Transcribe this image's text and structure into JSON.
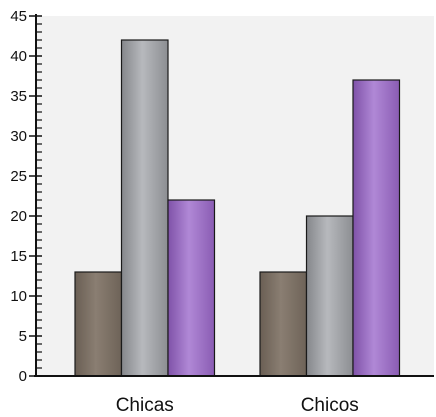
{
  "chart_data": {
    "type": "bar",
    "title": "",
    "xlabel": "",
    "ylabel": "",
    "categories": [
      "Chicas",
      "Chicos"
    ],
    "series": [
      {
        "values": [
          13,
          13
        ],
        "color": "#7d7165"
      },
      {
        "values": [
          42,
          20
        ],
        "color": "#a3a5a9"
      },
      {
        "values": [
          22,
          37
        ],
        "color": "#9b6ec2"
      }
    ],
    "ylim": [
      0,
      45
    ],
    "yticks": [
      0,
      5,
      10,
      15,
      20,
      25,
      30,
      35,
      40,
      45
    ],
    "ytick_labels": [
      "0",
      "5",
      "10",
      "15",
      "20",
      "25",
      "30",
      "35",
      "40",
      "45"
    ],
    "minor_tick_step": 1,
    "grid": false,
    "legend": false,
    "plot_background": "#f2f2f2"
  }
}
